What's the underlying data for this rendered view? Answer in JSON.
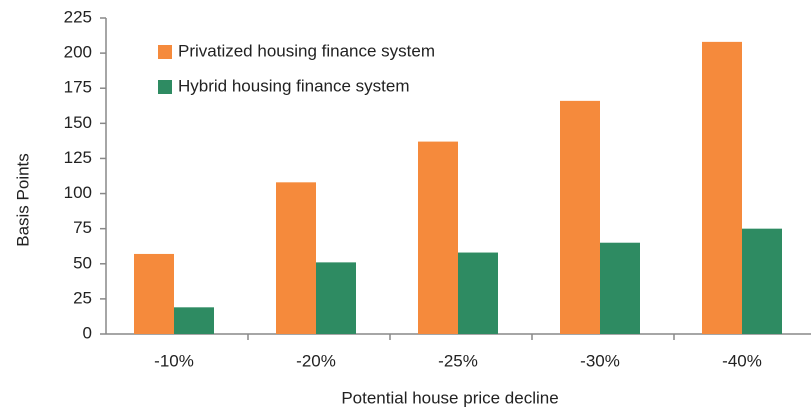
{
  "chart_data": {
    "type": "bar",
    "x_label": "Potential house price decline",
    "y_label": "Basis Points",
    "categories": [
      "-10%",
      "-20%",
      "-25%",
      "-30%",
      "-40%"
    ],
    "series": [
      {
        "name": "Privatized housing finance system",
        "color": "#f58a3c",
        "values": [
          57,
          108,
          137,
          166,
          208
        ]
      },
      {
        "name": "Hybrid housing finance system",
        "color": "#2e8b62",
        "values": [
          19,
          51,
          58,
          65,
          75
        ]
      }
    ],
    "ylim": [
      0,
      225
    ],
    "yticks": [
      0,
      25,
      50,
      75,
      100,
      125,
      150,
      175,
      200,
      225
    ],
    "grid": false,
    "legend": "upper left"
  }
}
